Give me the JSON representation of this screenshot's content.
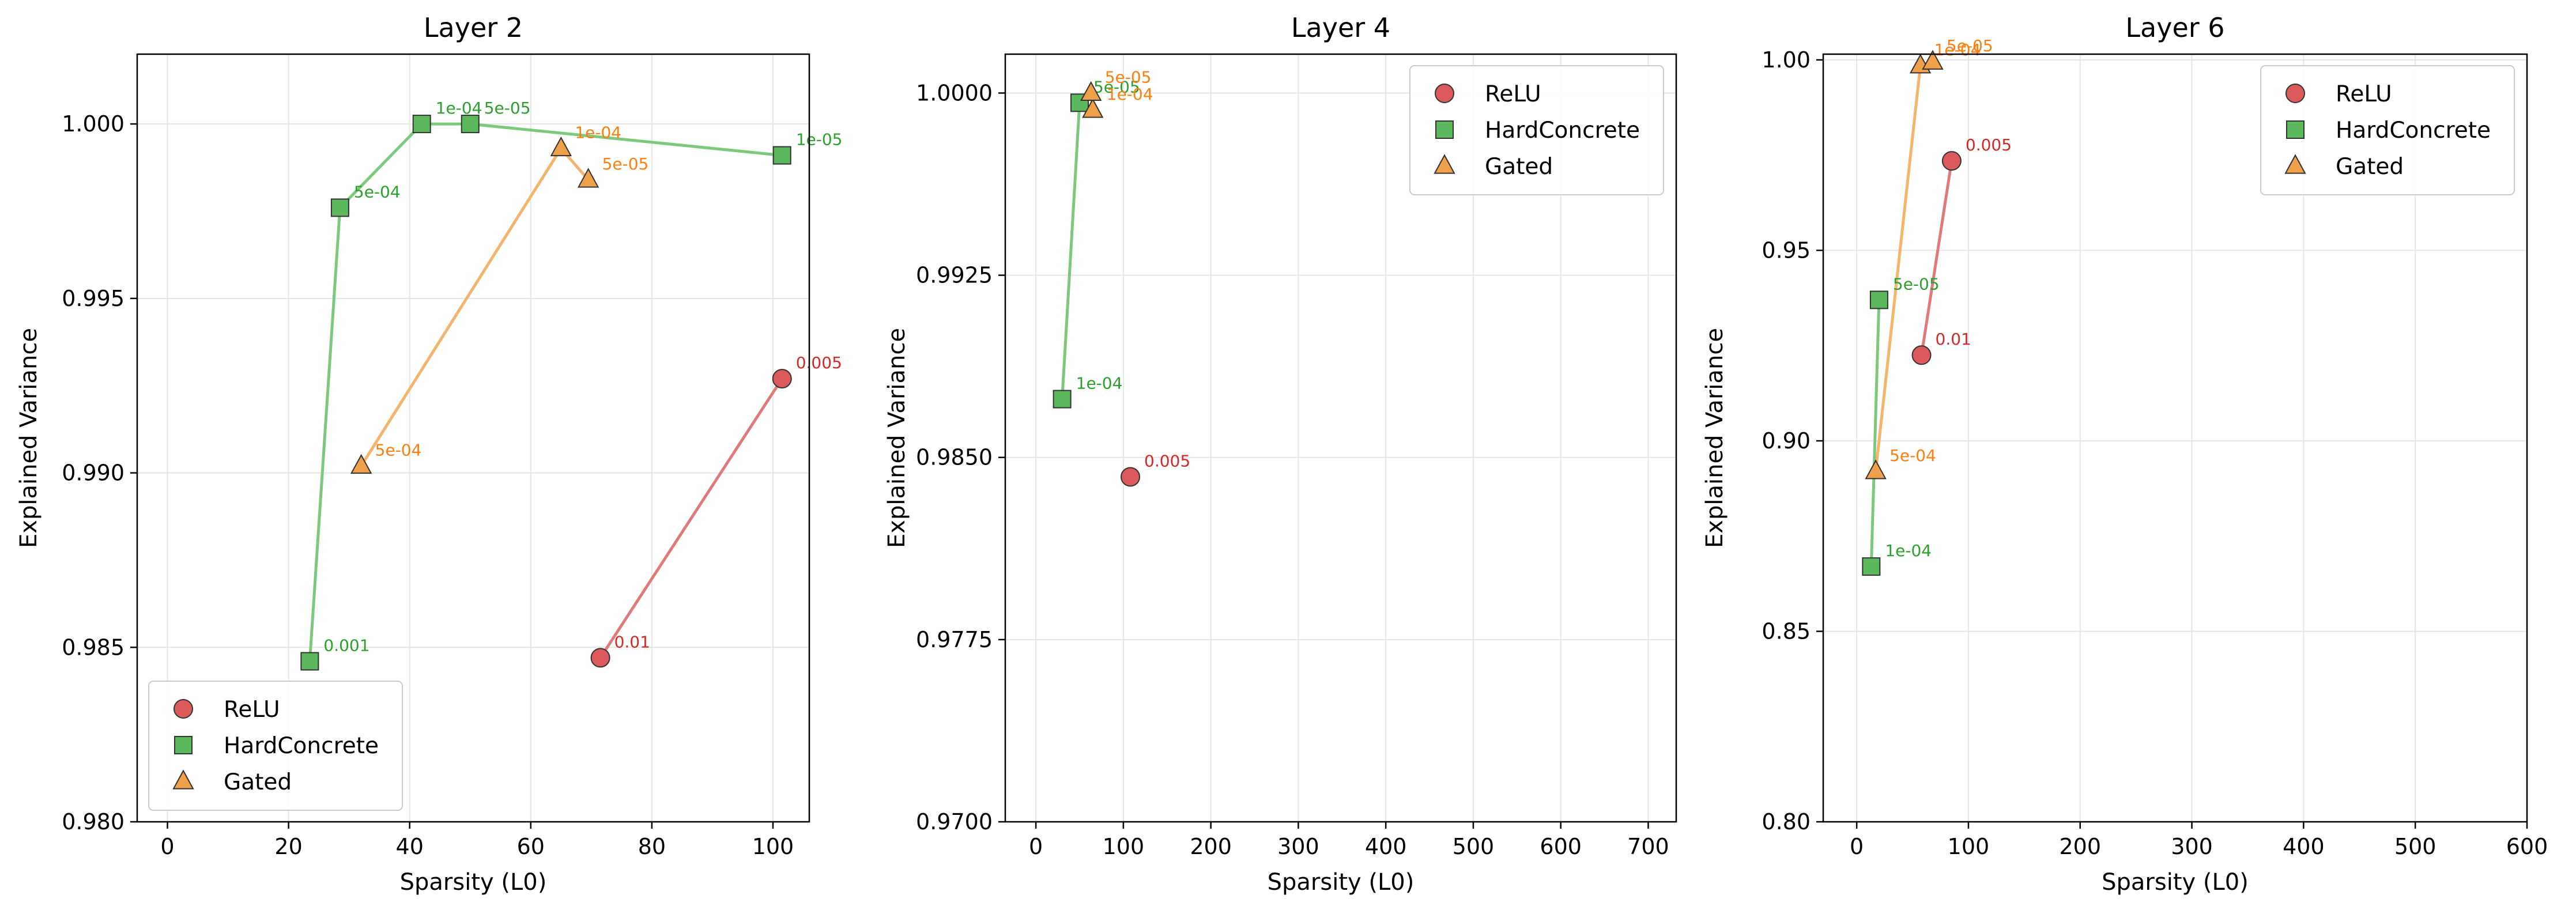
{
  "colors": {
    "ReLU": "#d62728",
    "HardConcrete": "#2ca02c",
    "Gated": "#ff7f0e",
    "ReLU_fill": "#dc5a5c",
    "HardConcrete_fill": "#5cb85c",
    "Gated_fill": "#f0a04a",
    "ReLU_line": "#e07a7a",
    "HardConcrete_line": "#7cc87c",
    "Gated_line": "#f5b36b",
    "grid": "#e6e6e6"
  },
  "chart_data": [
    {
      "type": "line",
      "title": "Layer 2",
      "xlabel": "Sparsity (L0)",
      "ylabel": "Explained Variance",
      "xlim": [
        -5,
        106
      ],
      "ylim": [
        0.98,
        1.002
      ],
      "xticks": [
        0,
        20,
        40,
        60,
        80,
        100
      ],
      "xtick_labels": [
        "0",
        "20",
        "40",
        "60",
        "80",
        "100"
      ],
      "yticks": [
        0.98,
        0.985,
        0.99,
        0.995,
        1.0
      ],
      "ytick_labels": [
        "0.980",
        "0.985",
        "0.990",
        "0.995",
        "1.000"
      ],
      "grid": true,
      "legend_position": "lower-left",
      "series": [
        {
          "name": "ReLU",
          "marker": "circle",
          "points": [
            {
              "x": 71.5,
              "y": 0.9847,
              "label": "0.01"
            },
            {
              "x": 101.5,
              "y": 0.9927,
              "label": "0.005"
            }
          ]
        },
        {
          "name": "HardConcrete",
          "marker": "square",
          "points": [
            {
              "x": 23.5,
              "y": 0.9846,
              "label": "0.001"
            },
            {
              "x": 28.5,
              "y": 0.9976,
              "label": "5e-04"
            },
            {
              "x": 42.0,
              "y": 1.0,
              "label": "1e-04"
            },
            {
              "x": 50.0,
              "y": 1.0,
              "label": "5e-05"
            },
            {
              "x": 101.5,
              "y": 0.9991,
              "label": "1e-05"
            }
          ]
        },
        {
          "name": "Gated",
          "marker": "triangle",
          "points": [
            {
              "x": 32.0,
              "y": 0.9902,
              "label": "5e-04"
            },
            {
              "x": 65.0,
              "y": 0.9993,
              "label": "1e-04"
            },
            {
              "x": 69.5,
              "y": 0.9984,
              "label": "5e-05"
            }
          ]
        }
      ]
    },
    {
      "type": "line",
      "title": "Layer 4",
      "xlabel": "Sparsity (L0)",
      "ylabel": "Explained Variance",
      "xlim": [
        -35,
        732
      ],
      "ylim": [
        0.97,
        1.0016
      ],
      "xticks": [
        0,
        100,
        200,
        300,
        400,
        500,
        600,
        700
      ],
      "xtick_labels": [
        "0",
        "100",
        "200",
        "300",
        "400",
        "500",
        "600",
        "700"
      ],
      "yticks": [
        0.97,
        0.9775,
        0.985,
        0.9925,
        1.0
      ],
      "ytick_labels": [
        "0.9700",
        "0.9775",
        "0.9850",
        "0.9925",
        "1.0000"
      ],
      "grid": true,
      "legend_position": "upper-right",
      "series": [
        {
          "name": "ReLU",
          "marker": "circle",
          "points": [
            {
              "x": 108,
              "y": 0.9842,
              "label": "0.005"
            }
          ]
        },
        {
          "name": "HardConcrete",
          "marker": "square",
          "points": [
            {
              "x": 30,
              "y": 0.9874,
              "label": "1e-04"
            },
            {
              "x": 50,
              "y": 0.9996,
              "label": "5e-05"
            }
          ]
        },
        {
          "name": "Gated",
          "marker": "triangle",
          "points": [
            {
              "x": 65,
              "y": 0.9993,
              "label": "1e-04"
            },
            {
              "x": 63,
              "y": 1.0,
              "label": "5e-05"
            }
          ]
        }
      ]
    },
    {
      "type": "line",
      "title": "Layer 6",
      "xlabel": "Sparsity (L0)",
      "ylabel": "Explained Variance",
      "xlim": [
        -30,
        600
      ],
      "ylim": [
        0.8,
        1.0015
      ],
      "xticks": [
        0,
        100,
        200,
        300,
        400,
        500,
        600
      ],
      "xtick_labels": [
        "0",
        "100",
        "200",
        "300",
        "400",
        "500",
        "600"
      ],
      "yticks": [
        0.8,
        0.85,
        0.9,
        0.95,
        1.0
      ],
      "ytick_labels": [
        "0.80",
        "0.85",
        "0.90",
        "0.95",
        "1.00"
      ],
      "grid": true,
      "legend_position": "upper-right",
      "series": [
        {
          "name": "ReLU",
          "marker": "circle",
          "points": [
            {
              "x": 58,
              "y": 0.9225,
              "label": "0.01"
            },
            {
              "x": 85,
              "y": 0.9735,
              "label": "0.005"
            }
          ]
        },
        {
          "name": "HardConcrete",
          "marker": "square",
          "points": [
            {
              "x": 13,
              "y": 0.867,
              "label": "1e-04"
            },
            {
              "x": 20,
              "y": 0.937,
              "label": "5e-05"
            }
          ]
        },
        {
          "name": "Gated",
          "marker": "triangle",
          "points": [
            {
              "x": 17,
              "y": 0.892,
              "label": "5e-04"
            },
            {
              "x": 57,
              "y": 0.9985,
              "label": "1e-04"
            },
            {
              "x": 68,
              "y": 0.9995,
              "label": "5e-05"
            }
          ]
        }
      ]
    }
  ]
}
